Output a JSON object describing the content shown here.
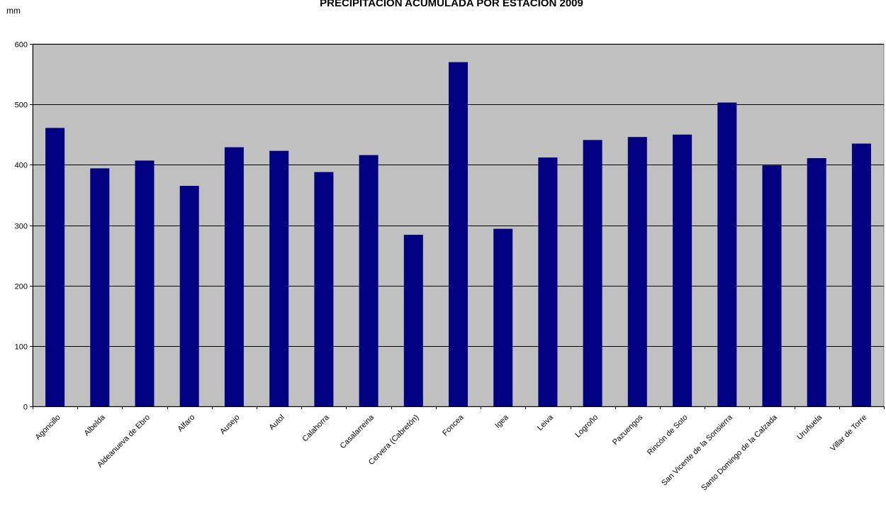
{
  "chart_data": {
    "type": "bar",
    "title": "PRECIPITACIÓN ACUMULADA POR ESTACIÓN 2009",
    "ylabel": "mm",
    "xlabel": "",
    "ylim": [
      0,
      600
    ],
    "yticks": [
      0,
      100,
      200,
      300,
      400,
      500,
      600
    ],
    "grid": true,
    "categories": [
      "Agoncillo",
      "Albelda",
      "Aldeanueva de Ebro",
      "Alfaro",
      "Ausejo",
      "Autol",
      "Calahorra",
      "Casalarreina",
      "Cervera (Cabretón)",
      "Foncea",
      "Igea",
      "Leiva",
      "Logroño",
      "Pazuengos",
      "Rincón de Soto",
      "San Vicente de la Sonsierra",
      "Santo Domingo de la Calzada",
      "Uruñuela",
      "Villar de Torre"
    ],
    "values": [
      461,
      394,
      407,
      365,
      429,
      423,
      388,
      416,
      284,
      570,
      294,
      412,
      441,
      446,
      450,
      503,
      399,
      411,
      435
    ],
    "colors": {
      "bar": "#000080",
      "plot_background": "#C0C0C0",
      "grid": "#000000"
    }
  }
}
